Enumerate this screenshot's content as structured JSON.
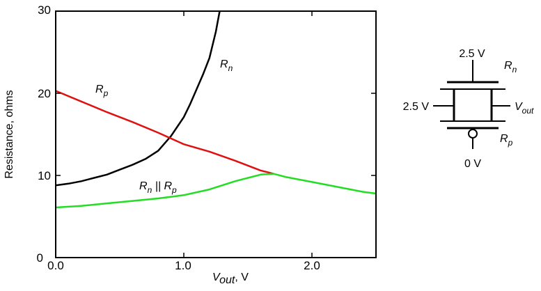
{
  "chart_data": {
    "type": "line",
    "xlabel_main": "V",
    "xlabel_sub": "out",
    "xlabel_unit": ", V",
    "ylabel": "Resistance, ohms",
    "xlim": [
      0,
      2.5
    ],
    "ylim": [
      0,
      30
    ],
    "x_ticks": [
      0.0,
      1.0,
      2.0
    ],
    "x_tick_labels": [
      "0.0",
      "1.0",
      "2.0"
    ],
    "y_ticks": [
      0,
      10,
      20,
      30
    ],
    "y_tick_labels": [
      "0",
      "10",
      "20",
      "30"
    ],
    "grid": false,
    "series": [
      {
        "name": "R_n",
        "color": "#000000",
        "points": [
          [
            0,
            8.8
          ],
          [
            0.1,
            9.0
          ],
          [
            0.2,
            9.3
          ],
          [
            0.3,
            9.7
          ],
          [
            0.4,
            10.1
          ],
          [
            0.5,
            10.7
          ],
          [
            0.6,
            11.3
          ],
          [
            0.7,
            12.0
          ],
          [
            0.8,
            13.0
          ],
          [
            0.9,
            14.8
          ],
          [
            1.0,
            17.1
          ],
          [
            1.05,
            18.7
          ],
          [
            1.1,
            20.5
          ],
          [
            1.15,
            22.3
          ],
          [
            1.2,
            24.3
          ],
          [
            1.25,
            27.5
          ],
          [
            1.28,
            30
          ]
        ]
      },
      {
        "name": "R_p",
        "color": "#e01010",
        "points": [
          [
            0,
            20.3
          ],
          [
            0.2,
            19.0
          ],
          [
            0.4,
            17.7
          ],
          [
            0.6,
            16.5
          ],
          [
            0.8,
            15.2
          ],
          [
            1.0,
            13.8
          ],
          [
            1.2,
            12.9
          ],
          [
            1.4,
            11.8
          ],
          [
            1.6,
            10.6
          ],
          [
            1.7,
            10.2
          ]
        ]
      },
      {
        "name": "R_n || R_p",
        "color": "#22dd22",
        "points": [
          [
            0,
            6.1
          ],
          [
            0.2,
            6.3
          ],
          [
            0.4,
            6.6
          ],
          [
            0.6,
            6.9
          ],
          [
            0.8,
            7.2
          ],
          [
            1.0,
            7.6
          ],
          [
            1.2,
            8.3
          ],
          [
            1.4,
            9.3
          ],
          [
            1.6,
            10.1
          ],
          [
            1.7,
            10.2
          ],
          [
            1.8,
            9.8
          ],
          [
            2.0,
            9.2
          ],
          [
            2.2,
            8.6
          ],
          [
            2.4,
            8.0
          ],
          [
            2.5,
            7.8
          ]
        ]
      }
    ],
    "annotations": [
      {
        "main": "R",
        "sub": "n",
        "extra": ""
      },
      {
        "main": "R",
        "sub": "p",
        "extra": ""
      },
      {
        "main": "R",
        "sub": "n",
        "extra": " || R",
        "sub2": "p"
      }
    ]
  },
  "circuit": {
    "top_voltage": "2.5 V",
    "gate_voltage": "2.5 V",
    "bottom_voltage": "0 V",
    "rn_main": "R",
    "rn_sub": "n",
    "rp_main": "R",
    "rp_sub": "p",
    "vout_main": "V",
    "vout_sub": "out"
  }
}
